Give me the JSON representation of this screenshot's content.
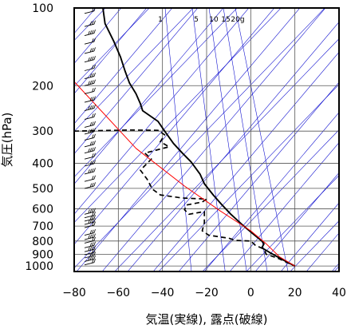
{
  "chart_data": {
    "type": "line",
    "xlabel": "気温(実線), 露点(破線)",
    "ylabel": "気圧(hPa)",
    "xlim": [
      -80,
      40
    ],
    "ylim": [
      1050,
      100
    ],
    "y_scale": "log",
    "x_ticks": [
      -80,
      -60,
      -40,
      -20,
      0,
      20,
      40
    ],
    "x_tick_labels": [
      "−80",
      "−60",
      "−40",
      "−20",
      "0",
      "20",
      "40"
    ],
    "y_ticks": [
      100,
      200,
      300,
      400,
      500,
      600,
      700,
      800,
      900,
      1000
    ],
    "y_tick_labels": [
      "100",
      "200",
      "300",
      "400",
      "500",
      "600",
      "700",
      "800",
      "900",
      "1000"
    ],
    "grid": true,
    "colors": {
      "temperature": "#000000",
      "dewpoint": "#000000",
      "parcel": "#ff0000",
      "background_lines": "#0000cc",
      "frame": "#000000"
    },
    "mixing_ratio_labels": [
      "1",
      "5",
      "10",
      "15",
      "20g"
    ],
    "series": [
      {
        "style": "solid",
        "points": [
          [
            -67,
            100
          ],
          [
            -66,
            115
          ],
          [
            -62,
            135
          ],
          [
            -59,
            155
          ],
          [
            -57,
            175
          ],
          [
            -55,
            195
          ],
          [
            -52,
            215
          ],
          [
            -50,
            235
          ],
          [
            -49,
            250
          ],
          [
            -42,
            275
          ],
          [
            -39,
            300
          ],
          [
            -35,
            335
          ],
          [
            -31,
            365
          ],
          [
            -27,
            395
          ],
          [
            -23,
            440
          ],
          [
            -21,
            480
          ],
          [
            -17,
            530
          ],
          [
            -13,
            580
          ],
          [
            -9,
            630
          ],
          [
            -4,
            690
          ],
          [
            1,
            750
          ],
          [
            5,
            800
          ],
          [
            6,
            820
          ],
          [
            5,
            850
          ],
          [
            9,
            890
          ],
          [
            14,
            940
          ],
          [
            20,
            1000
          ]
        ]
      },
      {
        "style": "dashed",
        "points": [
          [
            -80,
            300
          ],
          [
            -55,
            297
          ],
          [
            -42,
            298
          ],
          [
            -39,
            310
          ],
          [
            -41,
            330
          ],
          [
            -37,
            345
          ],
          [
            -48,
            365
          ],
          [
            -45,
            385
          ],
          [
            -50,
            425
          ],
          [
            -47,
            460
          ],
          [
            -45,
            495
          ],
          [
            -45,
            500
          ],
          [
            -41,
            530
          ],
          [
            -31,
            545
          ],
          [
            -20,
            550
          ],
          [
            -22,
            565
          ],
          [
            -29,
            580
          ],
          [
            -30,
            605
          ],
          [
            -28,
            630
          ],
          [
            -21,
            615
          ],
          [
            -21,
            680
          ],
          [
            -22,
            730
          ],
          [
            -19,
            760
          ],
          [
            -10,
            780
          ],
          [
            -7,
            795
          ],
          [
            0,
            800
          ],
          [
            2,
            830
          ],
          [
            6,
            860
          ],
          [
            7,
            900
          ],
          [
            12,
            930
          ],
          [
            20,
            1000
          ]
        ]
      },
      {
        "style": "parcel",
        "points": [
          [
            20,
            1000
          ],
          [
            13,
            920
          ],
          [
            7,
            820
          ],
          [
            0,
            730
          ],
          [
            -14,
            610
          ],
          [
            -30,
            490
          ],
          [
            -52,
            350
          ],
          [
            -82,
            185
          ]
        ]
      }
    ],
    "wind_barbs_pressures": [
      105,
      118,
      128,
      138,
      150,
      162,
      175,
      188,
      200,
      215,
      232,
      250,
      270,
      290,
      308,
      325,
      345,
      365,
      385,
      410,
      440,
      470,
      500,
      630,
      650,
      670,
      690,
      710,
      760,
      790,
      815,
      850,
      880,
      905,
      930,
      960,
      990
    ]
  }
}
